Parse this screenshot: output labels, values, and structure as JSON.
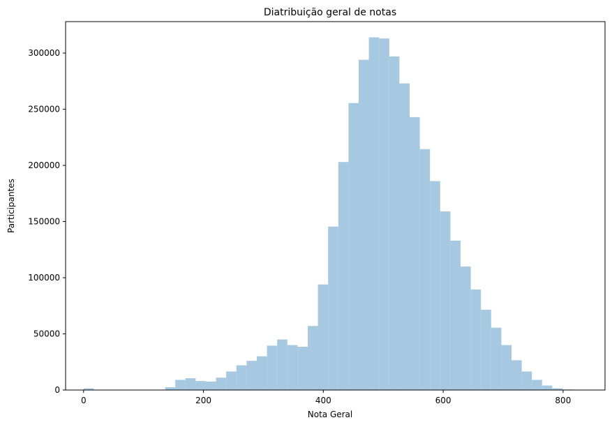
{
  "chart_data": {
    "type": "bar",
    "title": "Diatribuição geral de notas",
    "xlabel": "Nota Geral",
    "ylabel": "Participantes",
    "xlim": [
      -30,
      870
    ],
    "ylim": [
      0,
      328000
    ],
    "xticks": [
      0,
      200,
      400,
      600,
      800
    ],
    "yticks": [
      0,
      50000,
      100000,
      150000,
      200000,
      250000,
      300000
    ],
    "grid": false,
    "bar_color": "#a6c8e0",
    "bin_edges": [
      0,
      17,
      34,
      51,
      68,
      85,
      102,
      119,
      136,
      153,
      170,
      187,
      204,
      221,
      238,
      255,
      272,
      289,
      306,
      323,
      340,
      357,
      374,
      391,
      408,
      425,
      442,
      459,
      476,
      493,
      510,
      527,
      544,
      561,
      578,
      595,
      612,
      629,
      646,
      663,
      680,
      697,
      714,
      731,
      748,
      765,
      782,
      799,
      816,
      833,
      850
    ],
    "values": [
      1500,
      0,
      0,
      300,
      300,
      300,
      300,
      300,
      2500,
      9000,
      10500,
      8000,
      7500,
      11000,
      16500,
      22000,
      26000,
      30000,
      39500,
      45000,
      40000,
      38500,
      57000,
      94000,
      145500,
      203000,
      255500,
      294000,
      314000,
      313000,
      297000,
      273000,
      243000,
      214500,
      186000,
      159000,
      133000,
      110000,
      89500,
      71500,
      55500,
      40000,
      26500,
      16500,
      9000,
      4000,
      1500,
      500,
      200,
      100
    ]
  }
}
